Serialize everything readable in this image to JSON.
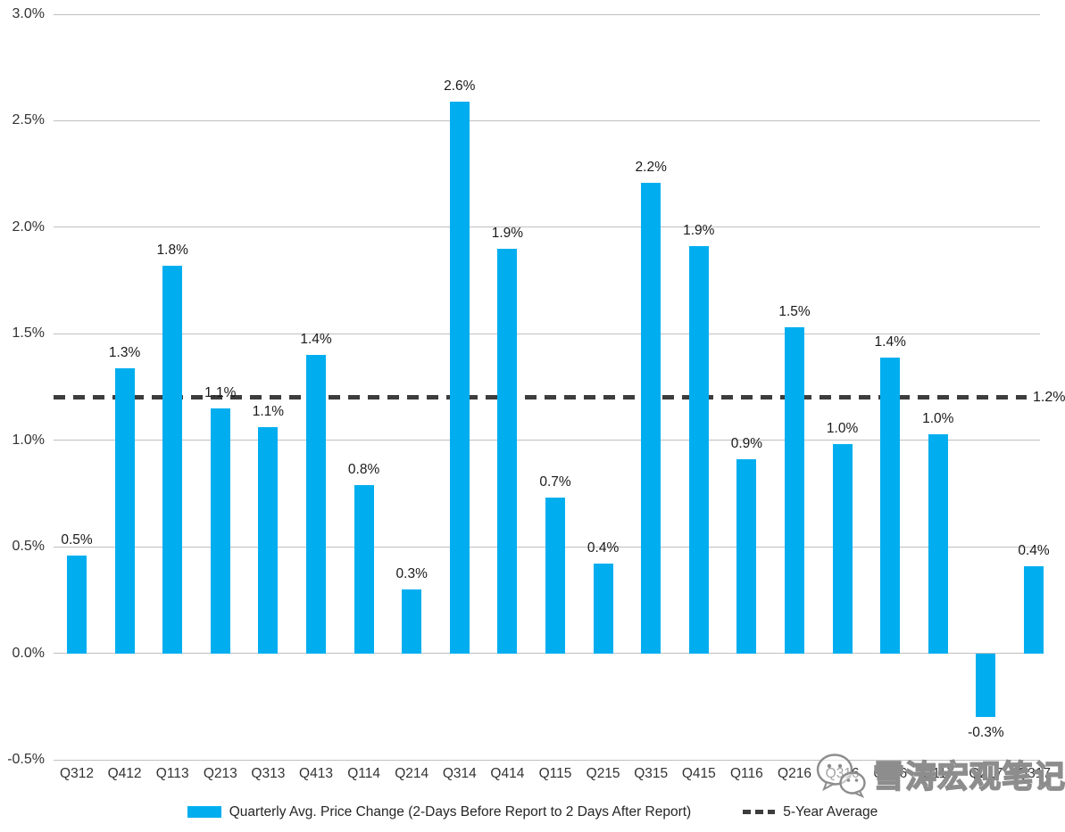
{
  "colors": {
    "bar": "#00AEEF",
    "gridline": "#BFBFBF",
    "dashed_line": "#3D3D3D",
    "tick_text": "#333333",
    "label_text": "#1A1A1A",
    "watermark": "#8D8D8D"
  },
  "chart_data": {
    "type": "bar",
    "title": "",
    "xlabel": "",
    "ylabel": "",
    "categories": [
      "Q312",
      "Q412",
      "Q113",
      "Q213",
      "Q313",
      "Q413",
      "Q114",
      "Q214",
      "Q314",
      "Q414",
      "Q115",
      "Q215",
      "Q315",
      "Q415",
      "Q116",
      "Q216",
      "Q316",
      "Q416",
      "Q117",
      "Q217",
      "Q317"
    ],
    "values": [
      0.46,
      1.34,
      1.82,
      1.15,
      1.06,
      1.4,
      0.79,
      0.3,
      2.59,
      1.9,
      0.73,
      0.42,
      2.21,
      1.91,
      0.91,
      1.53,
      0.98,
      1.39,
      1.03,
      -0.3,
      0.41
    ],
    "labels": [
      "0.5%",
      "1.3%",
      "1.8%",
      "1.1%",
      "1.1%",
      "1.4%",
      "0.8%",
      "0.3%",
      "2.6%",
      "1.9%",
      "0.7%",
      "0.4%",
      "2.2%",
      "1.9%",
      "0.9%",
      "1.5%",
      "1.0%",
      "1.4%",
      "1.0%",
      "-0.3%",
      "0.4%"
    ],
    "series_name": "Quarterly Avg. Price Change (2-Days Before Report to 2 Days After Report)",
    "average_line": {
      "value": 1.2,
      "label": "1.2%",
      "legend": "5-Year Average"
    },
    "y_ticks": [
      "3.0%",
      "2.5%",
      "2.0%",
      "1.5%",
      "1.0%",
      "0.5%",
      "0.0%",
      "-0.5%"
    ],
    "ylim": [
      -0.5,
      3.0
    ],
    "grid": true,
    "legend_position": "bottom"
  },
  "watermark": {
    "icon": "wechat-icon",
    "text": "雪涛宏观笔记"
  }
}
